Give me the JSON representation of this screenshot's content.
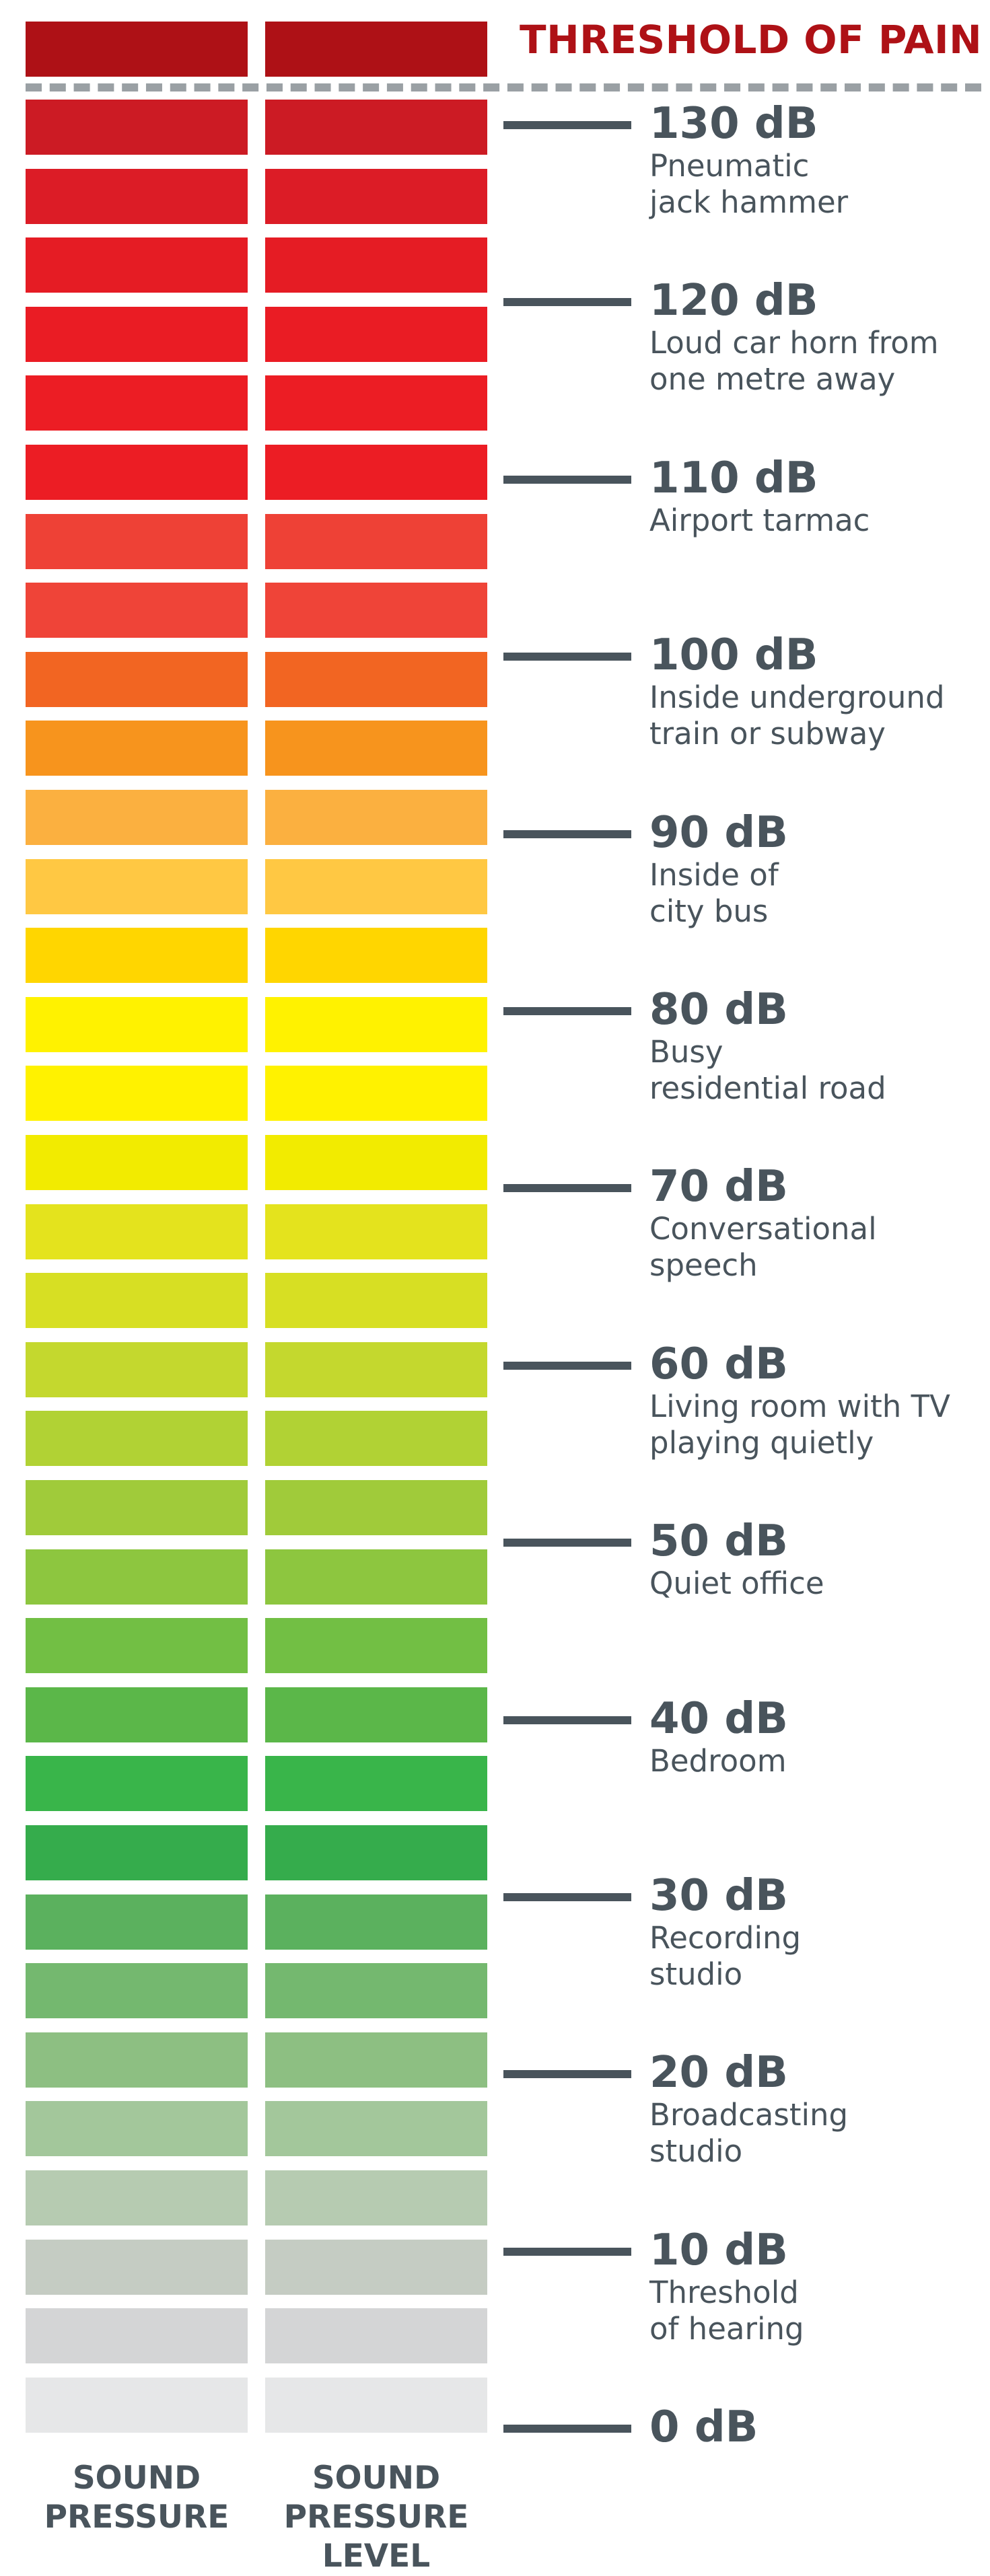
{
  "threshold": {
    "label": "THRESHOLD OF PAIN",
    "color": "#ae1116"
  },
  "text_color": "#49545c",
  "columns": [
    {
      "label_line1": "SOUND",
      "label_line2": "PRESSURE",
      "label_line3": ""
    },
    {
      "label_line1": "SOUND",
      "label_line2": "PRESSURE",
      "label_line3": "LEVEL"
    }
  ],
  "bars": [
    {
      "color": "#ae1116"
    },
    {
      "color": "#cc1b24"
    },
    {
      "color": "#dc1c26"
    },
    {
      "color": "#e51c24"
    },
    {
      "color": "#ea1c24"
    },
    {
      "color": "#ec1d24"
    },
    {
      "color": "#ec1d24"
    },
    {
      "color": "#ee4136"
    },
    {
      "color": "#ef4438"
    },
    {
      "color": "#f26522"
    },
    {
      "color": "#f7941d"
    },
    {
      "color": "#fbb040"
    },
    {
      "color": "#ffc843"
    },
    {
      "color": "#ffd600"
    },
    {
      "color": "#fff200"
    },
    {
      "color": "#fff200"
    },
    {
      "color": "#f2eb00"
    },
    {
      "color": "#e4e31d"
    },
    {
      "color": "#d7df23"
    },
    {
      "color": "#c4d82e"
    },
    {
      "color": "#b1d234"
    },
    {
      "color": "#a0cb3a"
    },
    {
      "color": "#8dc63f"
    },
    {
      "color": "#72bf44"
    },
    {
      "color": "#5bb749"
    },
    {
      "color": "#39b54a"
    },
    {
      "color": "#35ac4c"
    },
    {
      "color": "#5bb15e"
    },
    {
      "color": "#74b86f"
    },
    {
      "color": "#8dbf82"
    },
    {
      "color": "#a3c79b"
    },
    {
      "color": "#b6cbb1"
    },
    {
      "color": "#c5ccc3"
    },
    {
      "color": "#d4d5d6"
    },
    {
      "color": "#e6e7e8"
    }
  ],
  "levels": [
    {
      "db": "130 dB",
      "line1": "Pneumatic",
      "line2": "jack hammer"
    },
    {
      "db": "120 dB",
      "line1": "Loud car horn from",
      "line2": "one metre away"
    },
    {
      "db": "110 dB",
      "line1": "Airport tarmac",
      "line2": ""
    },
    {
      "db": "100 dB",
      "line1": "Inside underground",
      "line2": "train or subway"
    },
    {
      "db": "90 dB",
      "line1": "Inside of",
      "line2": "city bus"
    },
    {
      "db": "80 dB",
      "line1": "Busy",
      "line2": "residential road"
    },
    {
      "db": "70 dB",
      "line1": "Conversational",
      "line2": "speech"
    },
    {
      "db": "60 dB",
      "line1": "Living room with TV",
      "line2": "playing quietly"
    },
    {
      "db": "50 dB",
      "line1": "Quiet office",
      "line2": ""
    },
    {
      "db": "40 dB",
      "line1": "Bedroom",
      "line2": ""
    },
    {
      "db": "30 dB",
      "line1": "Recording",
      "line2": "studio"
    },
    {
      "db": "20 dB",
      "line1": "Broadcasting",
      "line2": "studio"
    },
    {
      "db": "10 dB",
      "line1": "Threshold",
      "line2": "of hearing"
    },
    {
      "db": "0 dB",
      "line1": "",
      "line2": ""
    }
  ]
}
